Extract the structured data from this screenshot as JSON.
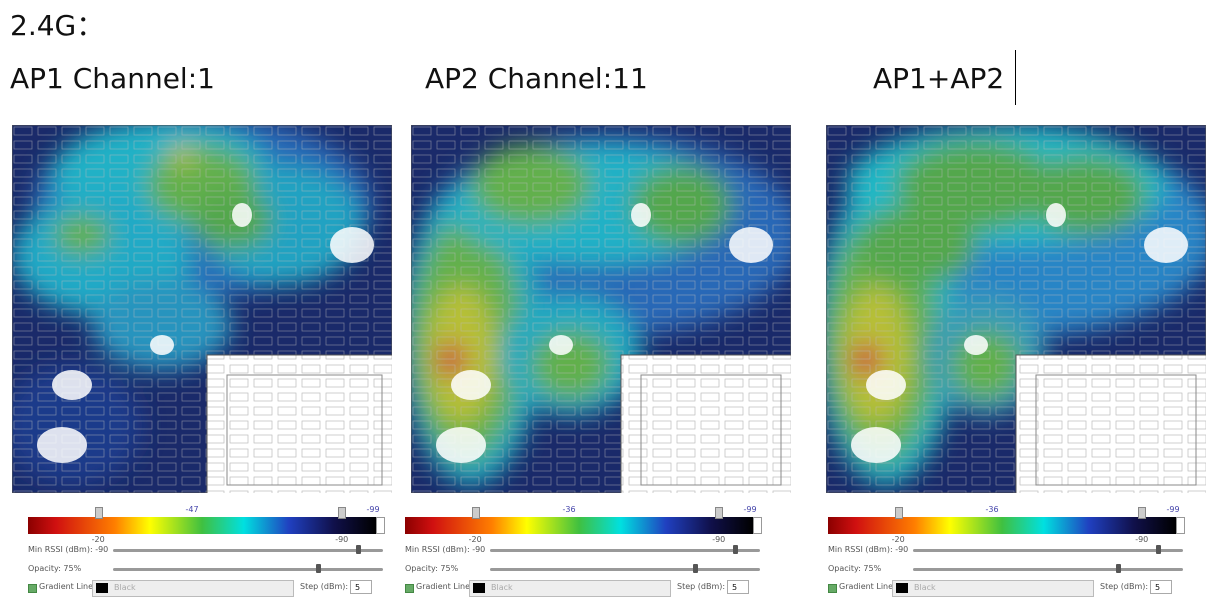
{
  "heading": "2.4G：",
  "panels": [
    {
      "title": "AP1 Channel:1",
      "scale": {
        "max_marker": "-20",
        "mid_marker": "-47",
        "min_marker": "-90",
        "end_marker": "-99"
      },
      "min_rssi": "Min RSSI (dBm): -90",
      "opacity": "Opacity: 75%",
      "gradient_lines": "Gradient Lines",
      "line_color": "Black",
      "step_label": "Step (dBm):",
      "step_value": "5"
    },
    {
      "title": "AP2 Channel:11",
      "scale": {
        "max_marker": "-20",
        "mid_marker": "-36",
        "min_marker": "-90",
        "end_marker": "-99"
      },
      "min_rssi": "Min RSSI (dBm): -90",
      "opacity": "Opacity: 75%",
      "gradient_lines": "Gradient Lines",
      "line_color": "Black",
      "step_label": "Step (dBm):",
      "step_value": "5"
    },
    {
      "title": "AP1+AP2",
      "scale": {
        "max_marker": "-20",
        "mid_marker": "-36",
        "min_marker": "-90",
        "end_marker": "-99"
      },
      "min_rssi": "Min RSSI (dBm): -90",
      "opacity": "Opacity: 75%",
      "gradient_lines": "Gradient Lines",
      "line_color": "Black",
      "step_label": "Step (dBm):",
      "step_value": "5"
    }
  ]
}
